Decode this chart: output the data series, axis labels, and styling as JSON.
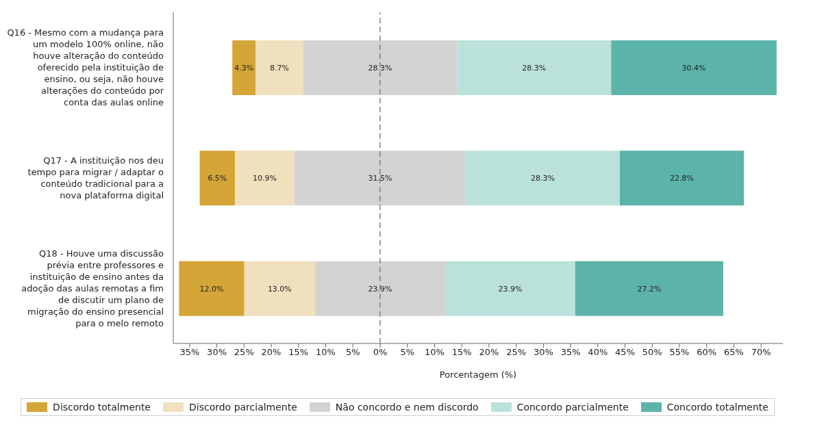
{
  "chart_data": {
    "type": "bar",
    "orientation": "horizontal",
    "categories": [
      "Q16 - Mesmo com a mudança para um modelo 100% online, não houve alteração do conteúdo oferecido pela instituição de ensino, ou seja, não houve alterações do conteúdo por conta das aulas online",
      "Q17 - A instituição nos deu tempo para migrar / adaptar o conteúdo tradicional para a nova plataforma digital",
      "Q18 - Houve uma discussão prévia entre professores e instituição de ensino antes da adoção das aulas remotas a fim de discutir um plano de migração do ensino presencial para o melo remoto"
    ],
    "series": [
      {
        "name": "Discordo totalmente",
        "color": "#d4a537",
        "base": [
          -27.15,
          -33.15,
          -36.95
        ],
        "values": [
          4.3,
          6.5,
          12.0
        ],
        "value_labels": [
          "4.3%",
          "6.5%",
          "12.0%"
        ]
      },
      {
        "name": "Discordo parcialmente",
        "color": "#f0e0be",
        "base": [
          -22.85,
          -26.65,
          -24.95
        ],
        "values": [
          8.7,
          10.9,
          13.0
        ],
        "value_labels": [
          "8.7%",
          "10.9%",
          "13.0%"
        ]
      },
      {
        "name": "Não concordo e nem discordo",
        "color": "#d3d3d3",
        "base": [
          -14.15,
          -15.75,
          -11.95
        ],
        "values": [
          28.3,
          31.5,
          23.9
        ],
        "value_labels": [
          "28.3%",
          "31.5%",
          "23.9%"
        ]
      },
      {
        "name": "Concordo parcialmente",
        "color": "#bbe1db",
        "base": [
          14.15,
          15.75,
          11.95
        ],
        "values": [
          28.3,
          28.3,
          23.9
        ],
        "value_labels": [
          "28.3%",
          "28.3%",
          "23.9%"
        ]
      },
      {
        "name": "Concordo totalmente",
        "color": "#5cb3a9",
        "base": [
          42.45,
          44.05,
          35.85
        ],
        "values": [
          30.4,
          22.8,
          27.2
        ],
        "value_labels": [
          "30.4%",
          "22.8%",
          "27.2%"
        ]
      }
    ],
    "xlabel": "Porcentagem (%)",
    "xlim": [
      -38,
      74
    ],
    "xticks": [
      {
        "value": -35,
        "label": "35%"
      },
      {
        "value": -30,
        "label": "30%"
      },
      {
        "value": -25,
        "label": "25%"
      },
      {
        "value": -20,
        "label": "20%"
      },
      {
        "value": -15,
        "label": "15%"
      },
      {
        "value": -10,
        "label": "10%"
      },
      {
        "value": -5,
        "label": "5%"
      },
      {
        "value": 0,
        "label": "0%"
      },
      {
        "value": 5,
        "label": "5%"
      },
      {
        "value": 10,
        "label": "10%"
      },
      {
        "value": 15,
        "label": "15%"
      },
      {
        "value": 20,
        "label": "20%"
      },
      {
        "value": 25,
        "label": "25%"
      },
      {
        "value": 30,
        "label": "30%"
      },
      {
        "value": 35,
        "label": "35%"
      },
      {
        "value": 40,
        "label": "40%"
      },
      {
        "value": 45,
        "label": "45%"
      },
      {
        "value": 50,
        "label": "50%"
      },
      {
        "value": 55,
        "label": "55%"
      },
      {
        "value": 60,
        "label": "60%"
      },
      {
        "value": 65,
        "label": "65%"
      },
      {
        "value": 70,
        "label": "70%"
      }
    ],
    "ref_lines": [
      {
        "axis": "x",
        "value": 0,
        "color": "#808080",
        "line_style": "dashed"
      }
    ],
    "grid": false,
    "legend": "bottom"
  }
}
